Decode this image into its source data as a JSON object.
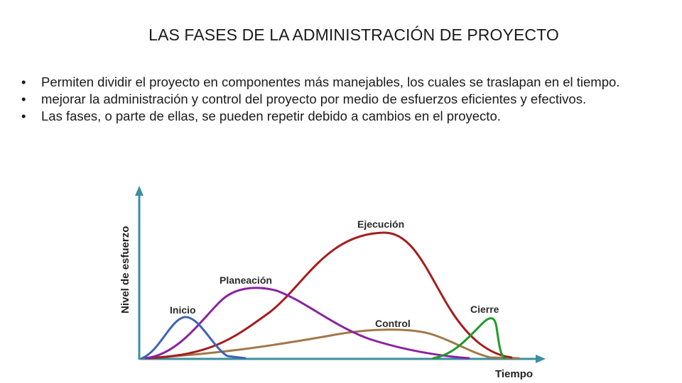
{
  "slide": {
    "title": "LAS FASES DE LA ADMINISTRACIÓN DE PROYECTO",
    "bullets": [
      "Permiten dividir el proyecto en componentes más manejables, los cuales se traslapan en el tiempo.",
      "mejorar la administración y control del proyecto por medio de esfuerzos eficientes y efectivos.",
      "Las fases, o parte de ellas, se pueden repetir debido a cambios en el proyecto."
    ],
    "bullet_symbol": "•"
  },
  "diagram": {
    "y_axis_label": "Nivel de esfuerzo",
    "x_axis_label": "Tiempo",
    "axis_color": "#3a8fa0",
    "phases": [
      {
        "label": "Inicio",
        "color": "#3f63b5"
      },
      {
        "label": "Planeación",
        "color": "#8a22a0"
      },
      {
        "label": "Ejecución",
        "color": "#a51d1d"
      },
      {
        "label": "Control",
        "color": "#a0784a"
      },
      {
        "label": "Cierre",
        "color": "#1f9a2a"
      }
    ]
  }
}
